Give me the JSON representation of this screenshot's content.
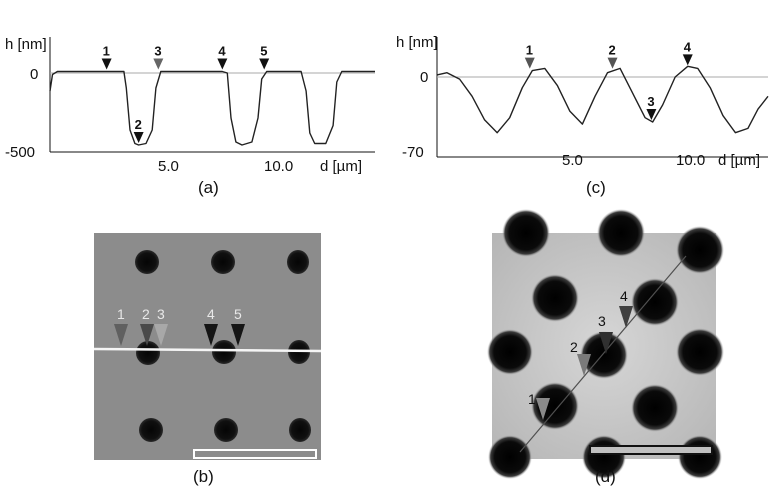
{
  "panels": {
    "a": {
      "label": "(a)",
      "ylabel": "h [nm]",
      "xlabel": "d [µm]",
      "y_ticks": [
        "0",
        "-500"
      ],
      "x_ticks": [
        "5.0",
        "10.0"
      ],
      "markers": [
        "1",
        "2",
        "3",
        "4",
        "5"
      ]
    },
    "b": {
      "label": "(b)",
      "markers": [
        "1",
        "2",
        "3",
        "4",
        "5"
      ]
    },
    "c": {
      "label": "(c)",
      "ylabel": "h [nm]",
      "xlabel": "d [µm]",
      "y_ticks": [
        "0",
        "-70"
      ],
      "x_ticks": [
        "5.0",
        "10.0"
      ],
      "markers": [
        "1",
        "2",
        "3",
        "4"
      ]
    },
    "d": {
      "label": "(d)",
      "markers": [
        "1",
        "2",
        "3",
        "4"
      ]
    }
  },
  "chart_data": [
    {
      "type": "line",
      "panel": "a",
      "xlabel": "d [µm]",
      "ylabel": "h [nm]",
      "xlim": [
        0,
        13.2
      ],
      "ylim": [
        -560,
        90
      ],
      "x": [
        0.0,
        0.1,
        0.3,
        1,
        2,
        3,
        3.1,
        3.25,
        3.45,
        3.6,
        3.9,
        4.15,
        4.3,
        4.5,
        5,
        6,
        7,
        7.2,
        7.35,
        7.55,
        7.8,
        8.2,
        8.45,
        8.6,
        8.8,
        9,
        9.6,
        10.2,
        10.4,
        10.55,
        10.75,
        11.2,
        11.5,
        11.65,
        11.85,
        12.3,
        13.2
      ],
      "y": [
        -120,
        -10,
        10,
        10,
        10,
        10,
        -100,
        -380,
        -470,
        -480,
        -470,
        -380,
        -100,
        10,
        10,
        10,
        10,
        0,
        -300,
        -460,
        -480,
        -460,
        -300,
        -40,
        10,
        10,
        10,
        10,
        -120,
        -400,
        -470,
        -470,
        -350,
        -60,
        10,
        10,
        10
      ],
      "markers": [
        {
          "label": "1",
          "x": 2.3,
          "y": 10
        },
        {
          "label": "2",
          "x": 3.6,
          "y": -480
        },
        {
          "label": "3",
          "x": 4.4,
          "y": 10
        },
        {
          "label": "4",
          "x": 7.0,
          "y": 10
        },
        {
          "label": "5",
          "x": 8.7,
          "y": 10
        }
      ]
    },
    {
      "type": "line",
      "panel": "c",
      "xlabel": "d [µm]",
      "ylabel": "h [nm]",
      "xlim": [
        0,
        13.2
      ],
      "ylim": [
        -78,
        30
      ],
      "x": [
        0.0,
        0.4,
        0.9,
        1.4,
        1.9,
        2.4,
        2.9,
        3.4,
        3.8,
        4.3,
        4.8,
        5.3,
        5.8,
        6.3,
        6.8,
        7.3,
        7.8,
        8.3,
        8.6,
        9.0,
        9.5,
        10.0,
        10.4,
        10.9,
        11.4,
        11.9,
        12.4,
        12.8,
        13.2
      ],
      "y": [
        2,
        4,
        -2,
        -18,
        -40,
        -52,
        -38,
        -10,
        6,
        8,
        -8,
        -32,
        -44,
        -18,
        4,
        8,
        -15,
        -38,
        -42,
        -26,
        0,
        10,
        8,
        -10,
        -36,
        -52,
        -48,
        -30,
        -18
      ],
      "markers": [
        {
          "label": "1",
          "x": 3.7,
          "y": 6
        },
        {
          "label": "2",
          "x": 7.0,
          "y": 6
        },
        {
          "label": "3",
          "x": 8.55,
          "y": -42
        },
        {
          "label": "4",
          "x": 10.0,
          "y": 9
        }
      ]
    }
  ]
}
